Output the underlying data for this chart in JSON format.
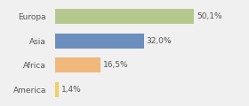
{
  "categories": [
    "Europa",
    "Asia",
    "Africa",
    "America"
  ],
  "values": [
    50.1,
    32.0,
    16.5,
    1.4
  ],
  "labels": [
    "50,1%",
    "32,0%",
    "16,5%",
    "1,4%"
  ],
  "bar_colors": [
    "#b5c98e",
    "#6c8ebf",
    "#f0b87a",
    "#f0d060"
  ],
  "background_color": "#f0f0f0",
  "xlim": [
    0,
    68
  ],
  "bar_height": 0.62,
  "label_fontsize": 6.5,
  "category_fontsize": 6.5,
  "label_color": "#555555",
  "category_color": "#555555"
}
